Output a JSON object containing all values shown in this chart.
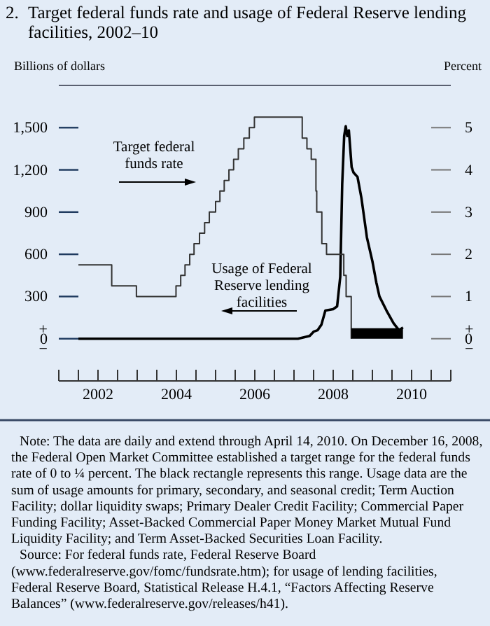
{
  "chart_data": {
    "type": "line",
    "title": "2. Target federal funds rate and usage of Federal Reserve lending facilities, 2002–10",
    "ylabel": "Billions of dollars",
    "y2label": "Percent",
    "xlim": [
      2001.5,
      2011.5
    ],
    "xticks": [
      {
        "value": 2001.5,
        "label": null
      },
      {
        "value": 2002,
        "label": null
      },
      {
        "value": 2002.5,
        "label": "2002"
      },
      {
        "value": 2003,
        "label": null
      },
      {
        "value": 2003.5,
        "label": null
      },
      {
        "value": 2004,
        "label": null
      },
      {
        "value": 2004.5,
        "label": "2004"
      },
      {
        "value": 2005,
        "label": null
      },
      {
        "value": 2005.5,
        "label": null
      },
      {
        "value": 2006,
        "label": null
      },
      {
        "value": 2006.5,
        "label": "2006"
      },
      {
        "value": 2007,
        "label": null
      },
      {
        "value": 2007.5,
        "label": null
      },
      {
        "value": 2008,
        "label": null
      },
      {
        "value": 2008.5,
        "label": "2008"
      },
      {
        "value": 2009,
        "label": null
      },
      {
        "value": 2009.5,
        "label": null
      },
      {
        "value": 2010,
        "label": null
      },
      {
        "value": 2010.5,
        "label": "2010"
      },
      {
        "value": 2011,
        "label": null
      },
      {
        "value": 2011.5,
        "label": null
      }
    ],
    "ylim": [
      -300,
      1800
    ],
    "yticks": [
      {
        "value": 0,
        "label": "+0−"
      },
      {
        "value": 300,
        "label": "300"
      },
      {
        "value": 600,
        "label": "600"
      },
      {
        "value": 900,
        "label": "900"
      },
      {
        "value": 1200,
        "label": "1,200"
      },
      {
        "value": 1500,
        "label": "1,500"
      }
    ],
    "y2lim": [
      -1,
      6
    ],
    "y2ticks": [
      {
        "value": 0,
        "label": "+0−"
      },
      1,
      2,
      3,
      4,
      5
    ],
    "grid": false,
    "series": [
      {
        "color": "#000000",
        "x": [
          2002.0,
          2007.6,
          2007.9,
          2008.0,
          2008.1,
          2008.2,
          2008.3,
          2008.5,
          2008.6,
          2008.68,
          2008.73,
          2008.78,
          2008.82,
          2008.86,
          2008.9,
          2008.97,
          2009.02,
          2009.12,
          2009.22,
          2009.28,
          2009.36,
          2009.5,
          2009.6,
          2009.68,
          2009.86,
          2010.04,
          2010.18,
          2010.28
        ],
        "values": [
          0,
          0,
          20,
          50,
          60,
          100,
          200,
          210,
          230,
          440,
          1100,
          1440,
          1510,
          1440,
          1480,
          1220,
          1180,
          1150,
          1000,
          880,
          720,
          550,
          400,
          300,
          200,
          110,
          60,
          80
        ]
      },
      {
        "type": "step",
        "axis": "y2",
        "color": "#333333",
        "x": [
          2002.0,
          2002.85,
          2003.48,
          2004.49,
          2004.61,
          2004.72,
          2004.84,
          2004.95,
          2005.09,
          2005.22,
          2005.34,
          2005.5,
          2005.61,
          2005.72,
          2005.84,
          2005.96,
          2006.08,
          2006.22,
          2006.36,
          2006.49,
          2007.71,
          2007.83,
          2007.94,
          2008.06,
          2008.08,
          2008.21,
          2008.33,
          2008.77,
          2008.83,
          2008.96
        ],
        "values": [
          1.75,
          1.25,
          1.0,
          1.25,
          1.5,
          1.75,
          2.0,
          2.25,
          2.5,
          2.75,
          3.0,
          3.25,
          3.5,
          3.75,
          4.0,
          4.25,
          4.5,
          4.75,
          5.0,
          5.25,
          4.75,
          4.5,
          4.25,
          3.5,
          3.0,
          2.25,
          2.0,
          1.5,
          1.0,
          0
        ]
      },
      {
        "type": "area",
        "axis": "y2",
        "color": "#000000",
        "x": [
          2008.96,
          2010.28
        ],
        "values": [
          0.25,
          0.25
        ]
      }
    ],
    "annotations": [
      "Target federal funds rate",
      "Usage of Federal Reserve lending facilities",
      "Note: The data are daily and extend through April 14, 2010. On December 16, 2008, the Federal Open Market Committee established a target range for the federal funds rate of 0 to ¼ percent. The black rectangle represents this range. Usage data are the sum of usage amounts for primary, secondary, and seasonal credit; Term Auction Facility; dollar liquidity swaps; Primary Dealer Credit Facility; Commercial Paper Funding Facility; Asset-Backed Commercial Paper Money Market Mutual Fund Liquidity Facility; and Term Asset-Backed Securities Loan Facility.",
      "Source: For federal funds rate, Federal Reserve Board (www.federalreserve.gov/fomc/fundsrate.htm); for usage of lending facilities, Federal Reserve Board, Statistical Release H.4.1, “Factors Affecting Reserve Balances” (www.federalreserve.gov/releases/h41)."
    ]
  }
}
